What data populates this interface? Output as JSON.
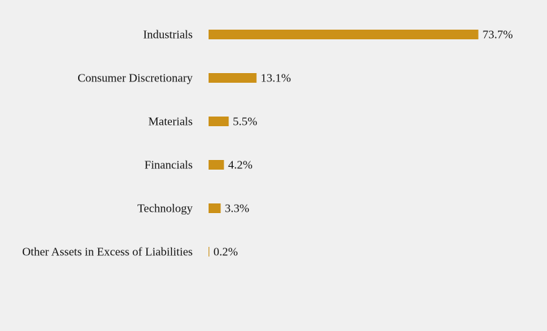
{
  "chart_data": {
    "type": "bar",
    "orientation": "horizontal",
    "categories": [
      "Industrials",
      "Consumer Discretionary",
      "Materials",
      "Financials",
      "Technology",
      "Other Assets in Excess of Liabilities"
    ],
    "values": [
      73.7,
      13.1,
      5.5,
      4.2,
      3.3,
      0.2
    ],
    "value_labels": [
      "73.7%",
      "13.1%",
      "5.5%",
      "4.2%",
      "3.3%",
      "0.2%"
    ],
    "value_suffix": "%",
    "bar_color": "#cc9118",
    "background_color": "#f0f0f0",
    "text_color": "#111111",
    "grid": false,
    "legend": "none",
    "axes_visible": false
  }
}
